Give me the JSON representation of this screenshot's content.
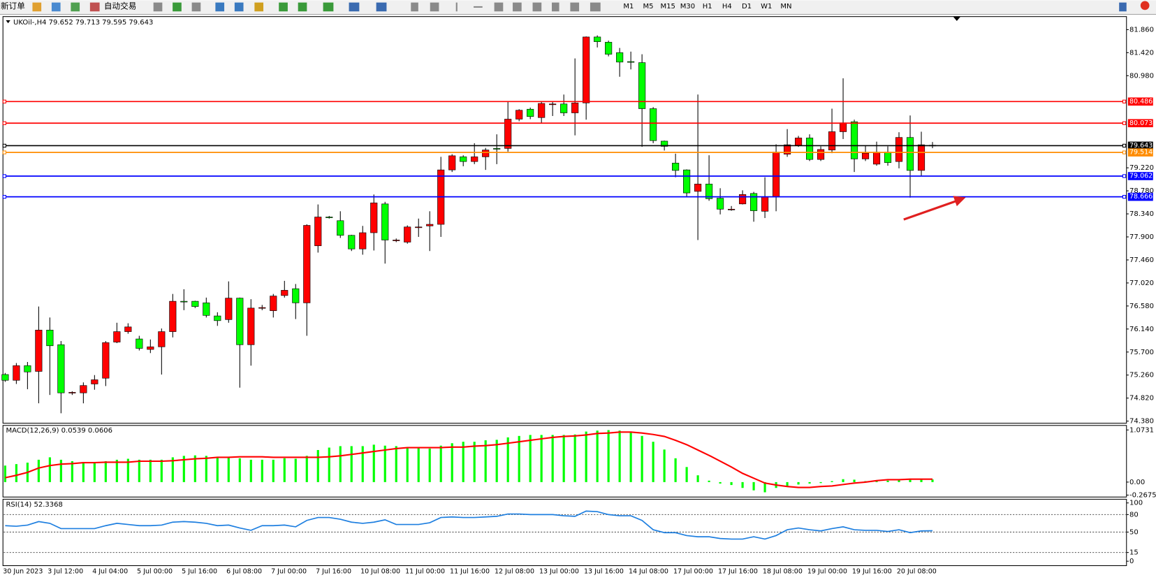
{
  "toolbar": {
    "buttons": [
      "新订单",
      "自动交易"
    ],
    "timeframes": [
      "M1",
      "M5",
      "M15",
      "M30",
      "H1",
      "H4",
      "D1",
      "W1",
      "MN"
    ]
  },
  "chart_data": [
    {
      "type": "candlestick",
      "title": "UKOil-,H4 79.652 79.713 79.595 79.643",
      "categories": [
        "30 Jun 2023",
        null,
        null,
        null,
        "3 Jul 12:00",
        null,
        null,
        null,
        "4 Jul 04:00",
        null,
        null,
        null,
        "5 Jul 00:00",
        null,
        null,
        null,
        "5 Jul 16:00",
        null,
        null,
        null,
        "6 Jul 08:00",
        null,
        null,
        null,
        "7 Jul 00:00",
        null,
        null,
        null,
        "7 Jul 16:00",
        null,
        null,
        null,
        "10 Jul 08:00",
        null,
        null,
        null,
        "11 Jul 00:00",
        null,
        null,
        null,
        "11 Jul 16:00",
        null,
        null,
        null,
        "12 Jul 08:00",
        null,
        null,
        null,
        "13 Jul 00:00",
        null,
        null,
        null,
        "13 Jul 16:00",
        null,
        null,
        null,
        "14 Jul 08:00",
        null,
        null,
        null,
        "17 Jul 00:00",
        null,
        null,
        null,
        "17 Jul 16:00",
        null,
        null,
        null,
        "18 Jul 08:00",
        null,
        null,
        null,
        "19 Jul 00:00",
        null,
        null,
        null,
        "19 Jul 16:00",
        null,
        null,
        null,
        "20 Jul 08:00",
        null,
        null,
        null
      ],
      "open": [
        75.27,
        75.16,
        75.44,
        75.33,
        76.12,
        75.84,
        74.92,
        74.92,
        75.09,
        75.2,
        75.89,
        76.09,
        75.95,
        75.75,
        75.8,
        76.09,
        76.67,
        76.67,
        76.64,
        76.39,
        76.32,
        76.73,
        75.84,
        76.54,
        76.49,
        76.78,
        76.91,
        76.64,
        77.73,
        78.28,
        78.21,
        77.93,
        77.67,
        77.98,
        78.53,
        77.84,
        77.8,
        78.09,
        78.11,
        78.14,
        79.18,
        79.43,
        79.34,
        79.43,
        79.59,
        79.59,
        80.15,
        80.34,
        80.18,
        80.44,
        80.44,
        80.27,
        80.46,
        81.72,
        81.62,
        81.42,
        81.25,
        81.23,
        80.35,
        79.73,
        79.31,
        79.18,
        78.77,
        78.91,
        78.64,
        78.43,
        78.53,
        78.73,
        78.39,
        78.67,
        79.48,
        79.65,
        79.79,
        79.38,
        79.56,
        79.91,
        80.1,
        79.39,
        79.29,
        79.52,
        79.34,
        79.8,
        79.17,
        79.652
      ],
      "high": [
        75.3,
        75.49,
        75.51,
        76.57,
        76.36,
        75.91,
        74.95,
        75.12,
        75.26,
        75.91,
        76.26,
        76.25,
        76.01,
        75.94,
        76.15,
        76.81,
        76.9,
        76.68,
        76.74,
        76.46,
        77.05,
        76.74,
        76.71,
        76.6,
        76.81,
        77.06,
        77.0,
        78.14,
        78.52,
        78.3,
        78.39,
        77.94,
        78.11,
        78.71,
        78.57,
        77.87,
        78.12,
        78.25,
        78.39,
        79.43,
        79.48,
        79.46,
        79.69,
        79.6,
        79.86,
        80.49,
        80.34,
        80.37,
        80.48,
        80.48,
        80.62,
        81.31,
        81.73,
        81.75,
        81.65,
        81.51,
        81.44,
        81.39,
        80.38,
        79.74,
        79.49,
        79.19,
        80.62,
        79.46,
        78.83,
        78.49,
        78.79,
        78.76,
        79.04,
        79.67,
        79.96,
        79.83,
        79.86,
        79.63,
        80.35,
        80.93,
        80.14,
        79.65,
        79.72,
        79.63,
        79.9,
        80.22,
        79.91,
        79.713
      ],
      "low": [
        75.13,
        75.09,
        74.99,
        74.72,
        74.88,
        74.53,
        74.88,
        74.72,
        74.98,
        75.05,
        75.87,
        76.05,
        75.73,
        75.68,
        75.27,
        75.98,
        76.5,
        76.54,
        76.36,
        76.2,
        76.26,
        75.02,
        75.44,
        76.5,
        76.36,
        76.74,
        76.33,
        76.01,
        77.6,
        78.25,
        77.88,
        77.63,
        77.56,
        77.64,
        77.39,
        77.8,
        77.77,
        77.9,
        77.63,
        77.9,
        79.14,
        79.25,
        79.29,
        79.18,
        79.29,
        79.53,
        80.11,
        80.15,
        80.08,
        80.21,
        80.21,
        79.84,
        80.14,
        81.52,
        81.35,
        80.96,
        81.1,
        79.62,
        79.69,
        79.55,
        79.04,
        78.67,
        77.84,
        78.59,
        78.33,
        78.4,
        78.52,
        78.19,
        78.26,
        78.39,
        79.43,
        79.62,
        79.35,
        79.35,
        79.5,
        79.77,
        79.14,
        79.35,
        79.26,
        79.26,
        79.21,
        78.65,
        79.07,
        79.595
      ],
      "close": [
        75.16,
        75.44,
        75.32,
        76.12,
        75.82,
        74.92,
        74.93,
        75.06,
        75.17,
        75.88,
        76.09,
        76.18,
        75.77,
        75.8,
        76.09,
        76.67,
        76.66,
        76.57,
        76.4,
        76.3,
        76.73,
        75.84,
        76.54,
        76.55,
        76.77,
        76.88,
        76.64,
        78.12,
        78.28,
        78.27,
        77.93,
        77.67,
        77.98,
        78.55,
        77.84,
        77.84,
        78.09,
        78.09,
        78.14,
        79.18,
        79.45,
        79.34,
        79.43,
        79.56,
        79.58,
        80.15,
        80.32,
        80.2,
        80.45,
        80.44,
        80.27,
        80.46,
        81.72,
        81.63,
        81.39,
        81.24,
        81.24,
        80.35,
        79.74,
        79.63,
        79.17,
        78.74,
        78.91,
        78.63,
        78.43,
        78.43,
        78.71,
        78.4,
        78.67,
        79.52,
        79.66,
        79.79,
        79.38,
        79.57,
        79.91,
        80.08,
        79.39,
        79.5,
        79.52,
        79.32,
        79.8,
        79.17,
        79.66,
        79.643
      ],
      "up_color": "#ff0000",
      "down_color": "#00ff00",
      "ylim": [
        74.34,
        82.11
      ],
      "yticks": [
        {
          "value": 81.86,
          "label": "81.860"
        },
        {
          "value": 81.42,
          "label": "81.420"
        },
        {
          "value": 80.98,
          "label": "80.980"
        },
        {
          "value": 79.22,
          "label": "79.220"
        },
        {
          "value": 78.78,
          "label": "78.780"
        },
        {
          "value": 78.34,
          "label": "78.340"
        },
        {
          "value": 77.9,
          "label": "77.900"
        },
        {
          "value": 77.46,
          "label": "77.460"
        },
        {
          "value": 77.02,
          "label": "77.020"
        },
        {
          "value": 76.58,
          "label": "76.580"
        },
        {
          "value": 76.14,
          "label": "76.140"
        },
        {
          "value": 75.7,
          "label": "75.700"
        },
        {
          "value": 75.26,
          "label": "75.260"
        },
        {
          "value": 74.82,
          "label": "74.820"
        },
        {
          "value": 74.38,
          "label": "74.380"
        }
      ],
      "levels": [
        {
          "value": 80.486,
          "color": "#ff0000"
        },
        {
          "value": 80.073,
          "color": "#ff0000"
        },
        {
          "value": 79.643,
          "color": "#000000"
        },
        {
          "value": 79.514,
          "color": "#ff8c00"
        },
        {
          "value": 79.062,
          "color": "#0000ff"
        },
        {
          "value": 78.666,
          "color": "#0000ff"
        }
      ]
    },
    {
      "type": "macd",
      "title": "MACD(12,26,9) 0.0539 0.0606",
      "series": [
        {
          "style": "histogram",
          "color": "#00ff00",
          "values": [
            0.34,
            0.37,
            0.4,
            0.46,
            0.51,
            0.46,
            0.43,
            0.41,
            0.41,
            0.43,
            0.46,
            0.48,
            0.46,
            0.46,
            0.46,
            0.51,
            0.54,
            0.55,
            0.54,
            0.51,
            0.52,
            0.49,
            0.46,
            0.46,
            0.46,
            0.49,
            0.48,
            0.54,
            0.66,
            0.71,
            0.74,
            0.74,
            0.74,
            0.77,
            0.75,
            0.74,
            0.71,
            0.71,
            0.69,
            0.75,
            0.8,
            0.83,
            0.83,
            0.86,
            0.87,
            0.92,
            0.95,
            0.97,
            0.97,
            0.97,
            0.97,
            0.98,
            1.04,
            1.06,
            1.07,
            1.06,
            1.04,
            0.95,
            0.83,
            0.67,
            0.49,
            0.31,
            0.14,
            0.03,
            -0.03,
            -0.06,
            -0.12,
            -0.17,
            -0.21,
            -0.12,
            -0.08,
            -0.05,
            -0.03,
            -0.02,
            0.02,
            0.06,
            0.05,
            0.02,
            0.02,
            0.03,
            0.05,
            0.05,
            0.05,
            0.0539
          ]
        },
        {
          "style": "line",
          "color": "#ff0000",
          "values": [
            0.09,
            0.14,
            0.2,
            0.29,
            0.34,
            0.37,
            0.38,
            0.4,
            0.4,
            0.41,
            0.41,
            0.41,
            0.43,
            0.43,
            0.43,
            0.44,
            0.46,
            0.48,
            0.49,
            0.51,
            0.51,
            0.52,
            0.52,
            0.52,
            0.51,
            0.51,
            0.51,
            0.51,
            0.51,
            0.52,
            0.54,
            0.57,
            0.6,
            0.63,
            0.66,
            0.69,
            0.71,
            0.71,
            0.71,
            0.71,
            0.72,
            0.72,
            0.74,
            0.75,
            0.77,
            0.8,
            0.83,
            0.86,
            0.89,
            0.92,
            0.94,
            0.95,
            0.97,
            1.0,
            1.01,
            1.03,
            1.03,
            1.01,
            0.98,
            0.94,
            0.86,
            0.77,
            0.66,
            0.55,
            0.43,
            0.31,
            0.18,
            0.08,
            -0.02,
            -0.06,
            -0.09,
            -0.11,
            -0.11,
            -0.09,
            -0.08,
            -0.05,
            -0.02,
            0.0,
            0.03,
            0.05,
            0.05,
            0.06,
            0.06,
            0.0606
          ]
        }
      ],
      "ylim": [
        -0.307,
        1.166
      ],
      "yticks": [
        1.0731,
        {
          "value": 0,
          "label": "0.00"
        },
        -0.2675
      ]
    },
    {
      "type": "line",
      "title": "RSI(14) 52.3368",
      "color": "#1e7fe0",
      "values": [
        61,
        60,
        62,
        68,
        65,
        56,
        56,
        56,
        56,
        61,
        65,
        63,
        61,
        61,
        62,
        67,
        68,
        67,
        65,
        61,
        62,
        57,
        53,
        61,
        61,
        62,
        59,
        70,
        75,
        75,
        72,
        67,
        65,
        67,
        71,
        63,
        63,
        63,
        66,
        75,
        76,
        75,
        75,
        76,
        77,
        81,
        81,
        80,
        80,
        80,
        78,
        77,
        86,
        85,
        80,
        78,
        78,
        70,
        54,
        49,
        49,
        44,
        42,
        42,
        39,
        38,
        38,
        42,
        38,
        44,
        54,
        57,
        54,
        52,
        56,
        59,
        54,
        53,
        53,
        51,
        54,
        49,
        52,
        52.3368
      ],
      "ylim": [
        0,
        100
      ],
      "yticks": [
        100,
        80,
        50,
        15,
        0
      ]
    }
  ]
}
